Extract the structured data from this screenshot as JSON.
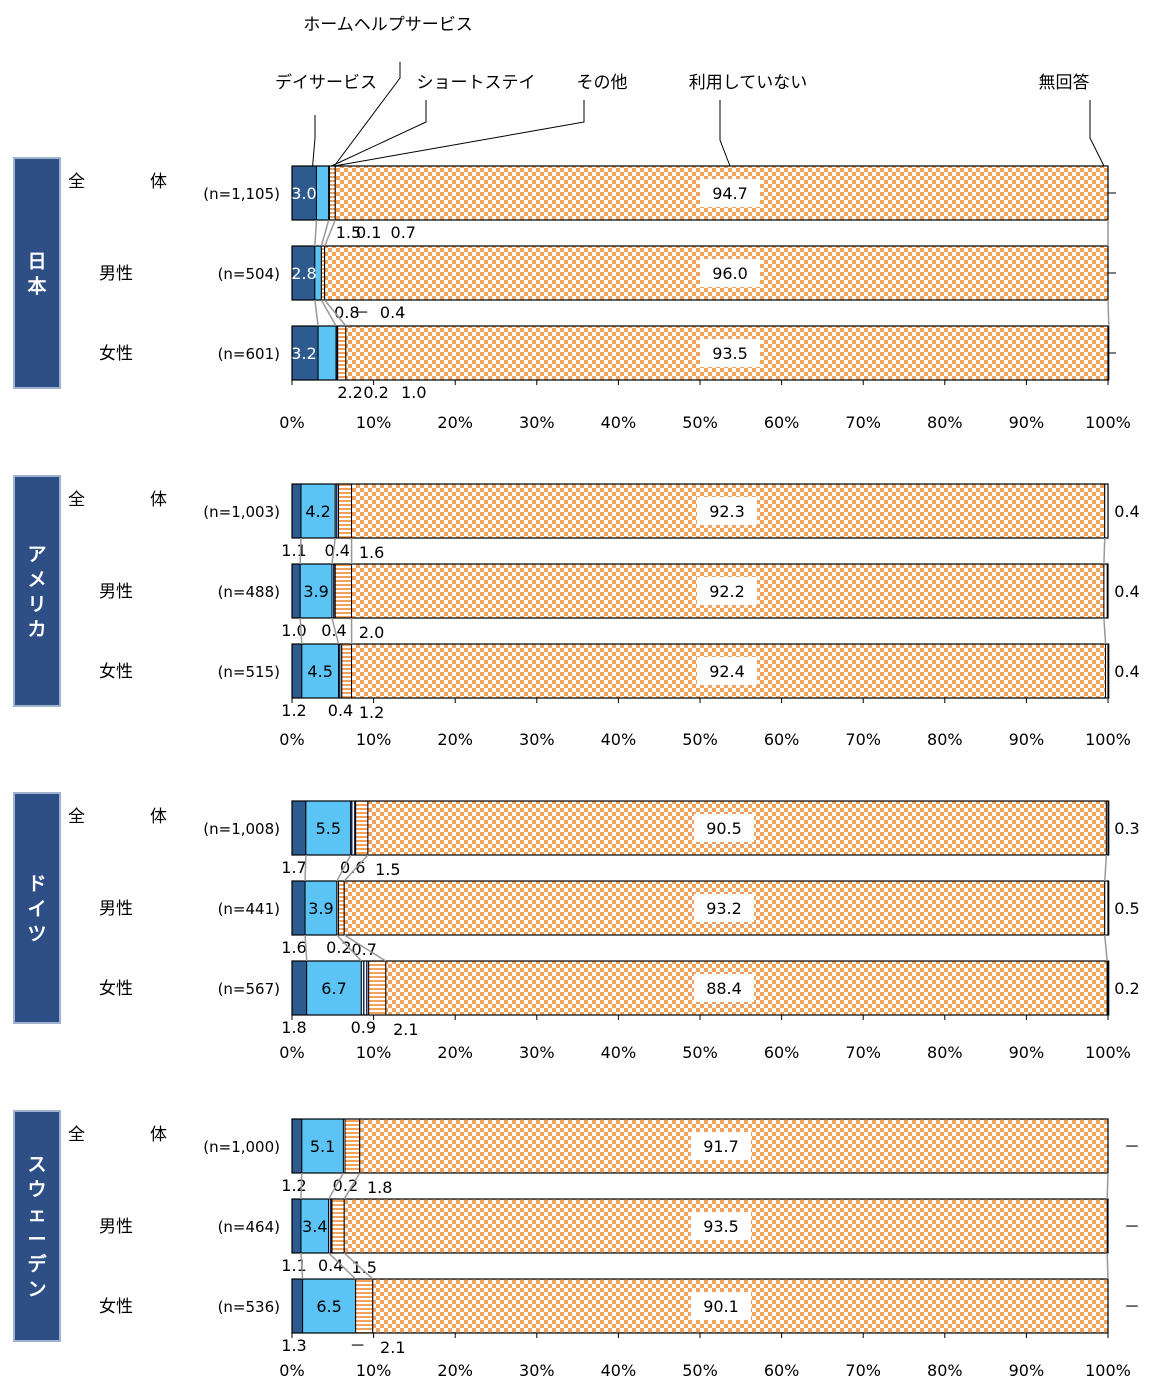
{
  "chart_data": {
    "type": "bar",
    "orientation": "horizontal",
    "stacked": true,
    "percent_stacked": true,
    "series": [
      {
        "name": "ホームヘルプサービス",
        "color": "#2e5b8f",
        "pattern": "solid"
      },
      {
        "name": "デイサービス",
        "color": "#5bc4f5",
        "pattern": "solid"
      },
      {
        "name": "ショートステイ",
        "color": "#ffffff",
        "pattern": "vertical-lines"
      },
      {
        "name": "その他",
        "color": "#ffffff",
        "pattern": "horizontal-stripes"
      },
      {
        "name": "利用していない",
        "color": "#f2a25a",
        "pattern": "checker"
      },
      {
        "name": "無回答",
        "color": "#ffffff",
        "pattern": "plain"
      }
    ],
    "x_ticks": [
      "0%",
      "10%",
      "20%",
      "30%",
      "40%",
      "50%",
      "60%",
      "70%",
      "80%",
      "90%",
      "100%"
    ],
    "xlim": [
      0,
      100
    ],
    "groups": [
      {
        "country": "日本",
        "rows": [
          {
            "label": "全　　　体",
            "n": "(n=1,105)",
            "values": [
              3.0,
              1.5,
              0.1,
              0.7,
              94.7,
              0
            ],
            "labels": [
              "3.0",
              "1.5",
              "0.1",
              "0.7",
              "94.7",
              ""
            ]
          },
          {
            "label": "男性",
            "n": "(n=504)",
            "values": [
              2.8,
              0.8,
              0,
              0.4,
              96.0,
              0
            ],
            "labels": [
              "2.8",
              "0.8",
              "－",
              "0.4",
              "96.0",
              ""
            ]
          },
          {
            "label": "女性",
            "n": "(n=601)",
            "values": [
              3.2,
              2.2,
              0.2,
              1.0,
              93.5,
              0
            ],
            "labels": [
              "3.2",
              "2.2",
              "0.2",
              "1.0",
              "93.5",
              ""
            ]
          }
        ]
      },
      {
        "country": "アメリカ",
        "rows": [
          {
            "label": "全　　　体",
            "n": "(n=1,003)",
            "values": [
              1.1,
              4.2,
              0.4,
              1.6,
              92.3,
              0.4
            ],
            "labels": [
              "1.1",
              "4.2",
              "0.4",
              "1.6",
              "92.3",
              "0.4"
            ]
          },
          {
            "label": "男性",
            "n": "(n=488)",
            "values": [
              1.0,
              3.9,
              0.4,
              2.0,
              92.2,
              0.4
            ],
            "labels": [
              "1.0",
              "3.9",
              "0.4",
              "2.0",
              "92.2",
              "0.4"
            ]
          },
          {
            "label": "女性",
            "n": "(n=515)",
            "values": [
              1.2,
              4.5,
              0.4,
              1.2,
              92.4,
              0.4
            ],
            "labels": [
              "1.2",
              "4.5",
              "0.4",
              "1.2",
              "92.4",
              "0.4"
            ]
          }
        ]
      },
      {
        "country": "ドイツ",
        "rows": [
          {
            "label": "全　　　体",
            "n": "(n=1,008)",
            "values": [
              1.7,
              5.5,
              0.6,
              1.5,
              90.5,
              0.3
            ],
            "labels": [
              "1.7",
              "5.5",
              "0.6",
              "1.5",
              "90.5",
              "0.3"
            ]
          },
          {
            "label": "男性",
            "n": "(n=441)",
            "values": [
              1.6,
              3.9,
              0.2,
              0.7,
              93.2,
              0.5
            ],
            "labels": [
              "1.6",
              "3.9",
              "0.2",
              "0.7",
              "93.2",
              "0.5"
            ]
          },
          {
            "label": "女性",
            "n": "(n=567)",
            "values": [
              1.8,
              6.7,
              0.9,
              2.1,
              88.4,
              0.2
            ],
            "labels": [
              "1.8",
              "6.7",
              "0.9",
              "2.1",
              "88.4",
              "0.2"
            ]
          }
        ]
      },
      {
        "country": "スウェーデン",
        "rows": [
          {
            "label": "全　　　体",
            "n": "(n=1,000)",
            "values": [
              1.2,
              5.1,
              0.2,
              1.8,
              91.7,
              0
            ],
            "labels": [
              "1.2",
              "5.1",
              "0.2",
              "1.8",
              "91.7",
              "－"
            ]
          },
          {
            "label": "男性",
            "n": "(n=464)",
            "values": [
              1.1,
              3.4,
              0.4,
              1.5,
              93.5,
              0
            ],
            "labels": [
              "1.1",
              "3.4",
              "0.4",
              "1.5",
              "93.5",
              "－"
            ]
          },
          {
            "label": "女性",
            "n": "(n=536)",
            "values": [
              1.3,
              6.5,
              0,
              2.1,
              90.1,
              0
            ],
            "labels": [
              "1.3",
              "6.5",
              "－",
              "2.1",
              "90.1",
              "－"
            ]
          }
        ]
      }
    ]
  }
}
